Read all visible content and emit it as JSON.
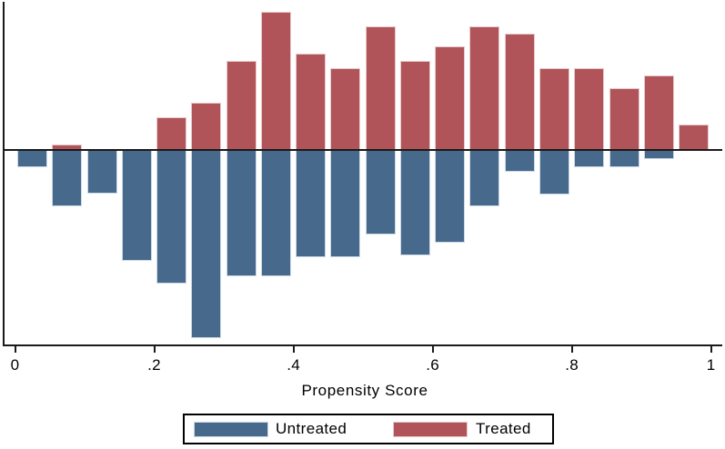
{
  "figure": {
    "background": "#ffffff"
  },
  "chart_data": {
    "type": "bar",
    "variant": "mirrored-propensity-histogram",
    "title": "",
    "xlabel": "Propensity Score",
    "ylabel": "",
    "grid": false,
    "x_axis": {
      "min": 0,
      "max": 1,
      "ticks": [
        {
          "value": 0.0,
          "label": "0"
        },
        {
          "value": 0.2,
          "label": ".2"
        },
        {
          "value": 0.4,
          "label": ".4"
        },
        {
          "value": 0.6,
          "label": ".6"
        },
        {
          "value": 0.8,
          "label": ".8"
        },
        {
          "value": 1.0,
          "label": "1"
        }
      ]
    },
    "y_axis": {
      "labeled": false,
      "note": "no y tick labels shown; treated bars drawn upward, untreated bars drawn downward; values are relative heights estimated in screen px units"
    },
    "bin_width": 0.05,
    "bin_starts": [
      0.0,
      0.05,
      0.1,
      0.15,
      0.2,
      0.25,
      0.3,
      0.35,
      0.4,
      0.45,
      0.5,
      0.55,
      0.6,
      0.65,
      0.7,
      0.75,
      0.8,
      0.85,
      0.9,
      0.95
    ],
    "series": [
      {
        "name": "Treated",
        "color": "#b0545a",
        "edge_color": "#e8caca",
        "direction": "up",
        "values": [
          0,
          6,
          0,
          0,
          36,
          52,
          98,
          152,
          106,
          90,
          136,
          98,
          114,
          136,
          128,
          90,
          90,
          68,
          82,
          28
        ]
      },
      {
        "name": "Untreated",
        "color": "#46698c",
        "edge_color": "#ccd9e6",
        "direction": "down",
        "values": [
          19,
          62,
          48,
          122,
          147,
          207,
          139,
          139,
          118,
          118,
          93,
          116,
          102,
          62,
          24,
          49,
          19,
          19,
          10,
          0
        ]
      }
    ],
    "legend": {
      "position": "bottom-center",
      "items": [
        {
          "label": "Untreated",
          "color": "#46698c"
        },
        {
          "label": "Treated",
          "color": "#b0545a"
        }
      ]
    }
  }
}
